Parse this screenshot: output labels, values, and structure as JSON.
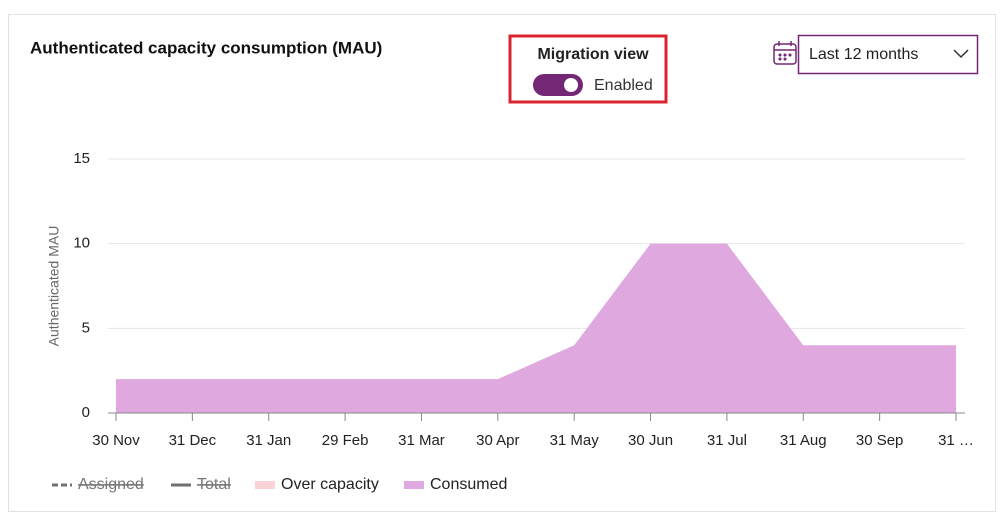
{
  "ui": {
    "title": "Authenticated capacity consumption (MAU)",
    "migration_view": {
      "label": "Migration view",
      "state": "Enabled"
    },
    "date_range": "Last 12 months"
  },
  "chart_data": {
    "type": "area",
    "y_label": "Authenticated MAU",
    "categories": [
      "30 Nov",
      "31 Dec",
      "31 Jan",
      "29 Feb",
      "31 Mar",
      "30 Apr",
      "31 May",
      "30 Jun",
      "31 Jul",
      "31 Aug",
      "30 Sep",
      "31 …"
    ],
    "series": [
      {
        "name": "Assigned",
        "color": "#707070",
        "style": "dashed",
        "hidden": true
      },
      {
        "name": "Total",
        "color": "#707070",
        "style": "line",
        "hidden": true
      },
      {
        "name": "Over capacity",
        "color": "#f9d3d5",
        "style": "swatch"
      },
      {
        "name": "Consumed",
        "color": "#dfa9e0",
        "style": "swatch",
        "values": [
          2,
          2,
          2,
          2,
          2,
          2,
          4,
          10,
          10,
          4,
          4,
          4
        ]
      }
    ],
    "ylim": [
      0,
      15
    ],
    "yticks": [
      0,
      5,
      10,
      15
    ],
    "grid": true
  }
}
